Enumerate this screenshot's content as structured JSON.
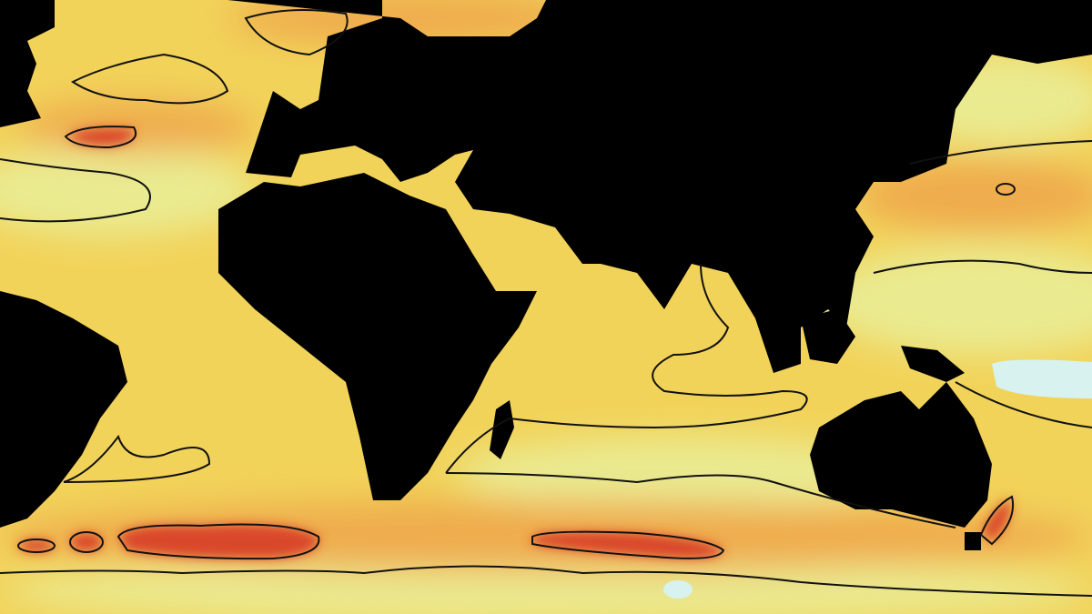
{
  "map": {
    "type": "global ocean heatmap with contour lines",
    "projection": "equirectangular",
    "colors": {
      "land": "#000000",
      "ocean_base": "#f2d35a",
      "ocean_light": "#e9ee9a",
      "ocean_warm": "#eea24a",
      "ocean_hot": "#d9462a",
      "ocean_cool": "#d8f2f0",
      "contour": "#111111"
    },
    "legend": null
  }
}
